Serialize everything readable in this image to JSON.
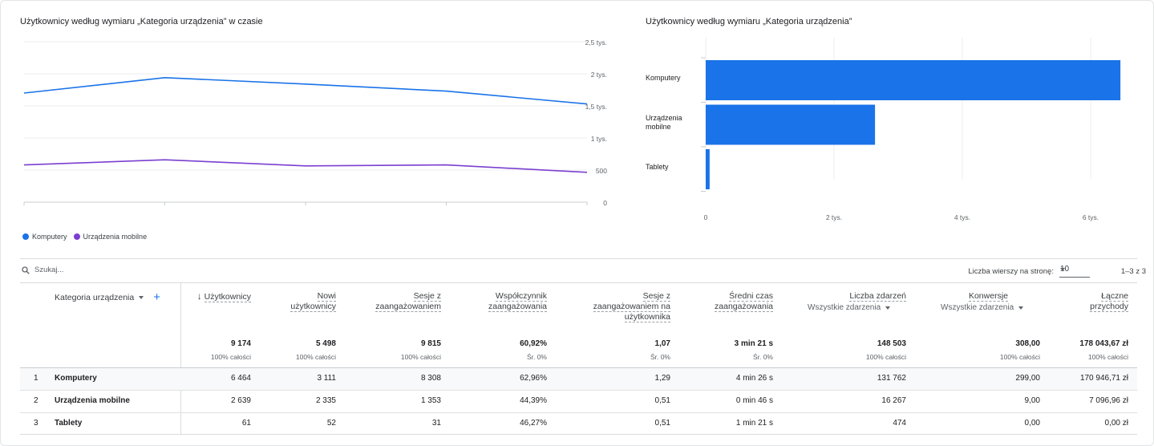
{
  "line_chart": {
    "title": "Użytkownicy według wymiaru „Kategoria urządzenia” w czasie",
    "y_ticks": [
      "2,5 tys.",
      "2 tys.",
      "1,5 tys.",
      "1 tys.",
      "500",
      "0"
    ],
    "legend": [
      {
        "name": "Komputery",
        "color": "#1a73e8"
      },
      {
        "name": "Urządzenia mobilne",
        "color": "#7b3fd0"
      }
    ]
  },
  "bar_chart": {
    "title": "Użytkownicy według wymiaru „Kategoria urządzenia”",
    "categories": [
      "Komputery",
      "Urządzenia mobilne",
      "Tablety"
    ],
    "x_ticks": [
      "0",
      "2 tys.",
      "4 tys.",
      "6 tys."
    ]
  },
  "chart_data": [
    {
      "type": "line",
      "title": "Użytkownicy według wymiaru „Kategoria urządzenia” w czasie",
      "ylim": [
        0,
        2500
      ],
      "y_ticks": [
        0,
        500,
        1000,
        1500,
        2000,
        2500
      ],
      "series": [
        {
          "name": "Komputery",
          "color": "#1a73e8",
          "values": [
            1700,
            1940,
            1840,
            1730,
            1530
          ]
        },
        {
          "name": "Urządzenia mobilne",
          "color": "#7b3fd0",
          "values": [
            580,
            660,
            565,
            580,
            465
          ]
        }
      ]
    },
    {
      "type": "bar",
      "orientation": "horizontal",
      "title": "Użytkownicy według wymiaru „Kategoria urządzenia”",
      "categories": [
        "Komputery",
        "Urządzenia mobilne",
        "Tablety"
      ],
      "values": [
        6464,
        2639,
        61
      ],
      "xlim": [
        0,
        7000
      ],
      "x_ticks": [
        0,
        2000,
        4000,
        6000
      ],
      "color": "#1a73e8"
    }
  ],
  "toolbar": {
    "search_placeholder": "Szukaj...",
    "rows_label": "Liczba wierszy na stronę:",
    "rows_value": "10",
    "range": "1–3 z 3"
  },
  "table": {
    "dimension_header": "Kategoria urządzenia",
    "columns": [
      {
        "l1": "Użytkownicy",
        "total": "9 174",
        "pct": "100% całości"
      },
      {
        "l1": "Nowi",
        "l2": "użytkownicy",
        "total": "5 498",
        "pct": "100% całości"
      },
      {
        "l1": "Sesje z",
        "l2": "zaangażowaniem",
        "total": "9 815",
        "pct": "100% całości"
      },
      {
        "l1": "Współczynnik",
        "l2": "zaangażowania",
        "total": "60,92%",
        "pct": "Śr. 0%"
      },
      {
        "l1": "Sesje z",
        "l2": "zaangażowaniem na",
        "l3": "użytkownika",
        "total": "1,07",
        "pct": "Śr. 0%"
      },
      {
        "l1": "Średni czas",
        "l2": "zaangażowania",
        "total": "3 min 21 s",
        "pct": "Śr. 0%"
      },
      {
        "l1": "Liczba zdarzeń",
        "sub": "Wszystkie zdarzenia",
        "total": "148 503",
        "pct": "100% całości"
      },
      {
        "l1": "Konwersje",
        "sub": "Wszystkie zdarzenia",
        "total": "308,00",
        "pct": "100% całości"
      },
      {
        "l1": "Łączne",
        "l2": "przychody",
        "total": "178 043,67 zł",
        "pct": "100% całości"
      }
    ],
    "rows": [
      {
        "idx": "1",
        "label": "Komputery",
        "cells": [
          "6 464",
          "3 111",
          "8 308",
          "62,96%",
          "1,29",
          "4 min 26 s",
          "131 762",
          "299,00",
          "170 946,71 zł"
        ]
      },
      {
        "idx": "2",
        "label": "Urządzenia mobilne",
        "cells": [
          "2 639",
          "2 335",
          "1 353",
          "44,39%",
          "0,51",
          "0 min 46 s",
          "16 267",
          "9,00",
          "7 096,96 zł"
        ]
      },
      {
        "idx": "3",
        "label": "Tablety",
        "cells": [
          "61",
          "52",
          "31",
          "46,27%",
          "0,51",
          "1 min 21 s",
          "474",
          "0,00",
          "0,00 zł"
        ]
      }
    ]
  }
}
